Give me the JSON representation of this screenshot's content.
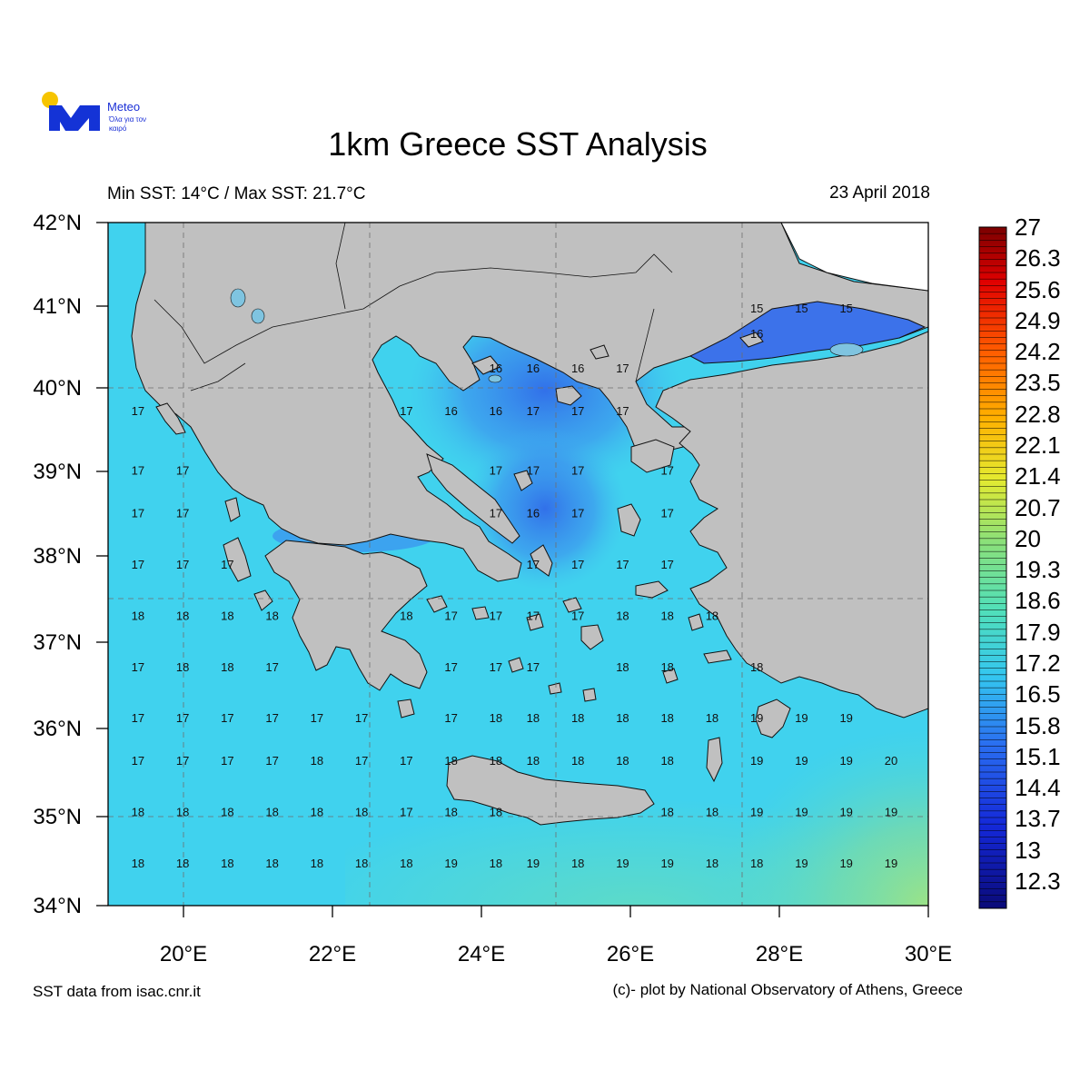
{
  "logo": {
    "brand": "Meteo",
    "tagline": "Όλα για τον καιρό"
  },
  "title": "1km Greece SST Analysis",
  "subtitle_left": "Min SST: 14°C / Max SST: 21.7°C",
  "date": "23 April 2018",
  "lat_labels": [
    "42°N",
    "41°N",
    "40°N",
    "39°N",
    "38°N",
    "37°N",
    "36°N",
    "35°N",
    "34°N"
  ],
  "lon_labels": [
    "20°E",
    "22°E",
    "24°E",
    "26°E",
    "28°E",
    "30°E"
  ],
  "colorbar": {
    "labels": [
      "27",
      "26.3",
      "25.6",
      "24.9",
      "24.2",
      "23.5",
      "22.8",
      "22.1",
      "21.4",
      "20.7",
      "20",
      "19.3",
      "18.6",
      "17.9",
      "17.2",
      "16.5",
      "15.8",
      "15.1",
      "14.4",
      "13.7",
      "13",
      "12.3"
    ],
    "min": 12.3,
    "max": 27
  },
  "source": "SST data from isac.cnr.it",
  "credit": "(c)- plot by National Observatory of Athens, Greece",
  "colors": {
    "land": "#c0c0c0",
    "sea_base": "#3fd5ee",
    "warm_sea": "#8ee08a",
    "cold_sea": "#3a78ec"
  },
  "sst_values": [
    [
      41.0,
      27.7,
      15
    ],
    [
      41.0,
      28.3,
      15
    ],
    [
      41.0,
      28.9,
      15
    ],
    [
      40.7,
      27.7,
      16
    ],
    [
      40.3,
      24.2,
      16
    ],
    [
      40.3,
      24.7,
      16
    ],
    [
      40.3,
      25.3,
      16
    ],
    [
      40.3,
      25.9,
      17
    ],
    [
      39.8,
      19.4,
      17
    ],
    [
      39.8,
      23.0,
      17
    ],
    [
      39.8,
      23.6,
      16
    ],
    [
      39.8,
      24.2,
      16
    ],
    [
      39.8,
      24.7,
      17
    ],
    [
      39.8,
      25.3,
      17
    ],
    [
      39.8,
      25.9,
      17
    ],
    [
      39.1,
      19.4,
      17
    ],
    [
      39.1,
      20.0,
      17
    ],
    [
      39.1,
      24.2,
      17
    ],
    [
      39.1,
      24.7,
      17
    ],
    [
      39.1,
      25.3,
      17
    ],
    [
      39.1,
      26.5,
      17
    ],
    [
      38.6,
      19.4,
      17
    ],
    [
      38.6,
      20.0,
      17
    ],
    [
      38.6,
      24.2,
      17
    ],
    [
      38.6,
      24.7,
      16
    ],
    [
      38.6,
      25.3,
      17
    ],
    [
      38.6,
      26.5,
      17
    ],
    [
      38.0,
      19.4,
      17
    ],
    [
      38.0,
      20.0,
      17
    ],
    [
      38.0,
      20.6,
      17
    ],
    [
      38.0,
      24.7,
      17
    ],
    [
      38.0,
      25.3,
      17
    ],
    [
      38.0,
      25.9,
      17
    ],
    [
      38.0,
      26.5,
      17
    ],
    [
      37.4,
      19.4,
      18
    ],
    [
      37.4,
      20.0,
      18
    ],
    [
      37.4,
      20.6,
      18
    ],
    [
      37.4,
      21.2,
      18
    ],
    [
      37.4,
      23.0,
      18
    ],
    [
      37.4,
      23.6,
      17
    ],
    [
      37.4,
      24.2,
      17
    ],
    [
      37.4,
      24.7,
      17
    ],
    [
      37.4,
      25.3,
      17
    ],
    [
      37.4,
      25.9,
      18
    ],
    [
      37.4,
      26.5,
      18
    ],
    [
      37.4,
      27.1,
      18
    ],
    [
      36.8,
      19.4,
      17
    ],
    [
      36.8,
      20.0,
      18
    ],
    [
      36.8,
      20.6,
      18
    ],
    [
      36.8,
      21.2,
      17
    ],
    [
      36.8,
      23.6,
      17
    ],
    [
      36.8,
      24.2,
      17
    ],
    [
      36.8,
      24.7,
      17
    ],
    [
      36.8,
      25.9,
      18
    ],
    [
      36.8,
      26.5,
      18
    ],
    [
      36.8,
      27.7,
      18
    ],
    [
      36.2,
      19.4,
      17
    ],
    [
      36.2,
      20.0,
      17
    ],
    [
      36.2,
      20.6,
      17
    ],
    [
      36.2,
      21.2,
      17
    ],
    [
      36.2,
      21.8,
      17
    ],
    [
      36.2,
      22.4,
      17
    ],
    [
      36.2,
      23.6,
      17
    ],
    [
      36.2,
      24.2,
      18
    ],
    [
      36.2,
      24.7,
      18
    ],
    [
      36.2,
      25.3,
      18
    ],
    [
      36.2,
      25.9,
      18
    ],
    [
      36.2,
      26.5,
      18
    ],
    [
      36.2,
      27.1,
      18
    ],
    [
      36.2,
      27.7,
      19
    ],
    [
      36.2,
      28.3,
      19
    ],
    [
      36.2,
      28.9,
      19
    ],
    [
      35.7,
      19.4,
      17
    ],
    [
      35.7,
      20.0,
      17
    ],
    [
      35.7,
      20.6,
      17
    ],
    [
      35.7,
      21.2,
      17
    ],
    [
      35.7,
      21.8,
      18
    ],
    [
      35.7,
      22.4,
      17
    ],
    [
      35.7,
      23.0,
      17
    ],
    [
      35.7,
      23.6,
      18
    ],
    [
      35.7,
      24.2,
      18
    ],
    [
      35.7,
      24.7,
      18
    ],
    [
      35.7,
      25.3,
      18
    ],
    [
      35.7,
      25.9,
      18
    ],
    [
      35.7,
      26.5,
      18
    ],
    [
      35.7,
      27.7,
      19
    ],
    [
      35.7,
      28.3,
      19
    ],
    [
      35.7,
      28.9,
      19
    ],
    [
      35.7,
      29.5,
      20
    ],
    [
      35.1,
      19.4,
      18
    ],
    [
      35.1,
      20.0,
      18
    ],
    [
      35.1,
      20.6,
      18
    ],
    [
      35.1,
      21.2,
      18
    ],
    [
      35.1,
      21.8,
      18
    ],
    [
      35.1,
      22.4,
      18
    ],
    [
      35.1,
      23.0,
      17
    ],
    [
      35.1,
      23.6,
      18
    ],
    [
      35.1,
      24.2,
      18
    ],
    [
      35.1,
      26.5,
      18
    ],
    [
      35.1,
      27.1,
      18
    ],
    [
      35.1,
      27.7,
      19
    ],
    [
      35.1,
      28.3,
      19
    ],
    [
      35.1,
      28.9,
      19
    ],
    [
      35.1,
      29.5,
      19
    ],
    [
      34.5,
      19.4,
      18
    ],
    [
      34.5,
      20.0,
      18
    ],
    [
      34.5,
      20.6,
      18
    ],
    [
      34.5,
      21.2,
      18
    ],
    [
      34.5,
      21.8,
      18
    ],
    [
      34.5,
      22.4,
      18
    ],
    [
      34.5,
      23.0,
      18
    ],
    [
      34.5,
      23.6,
      19
    ],
    [
      34.5,
      24.2,
      18
    ],
    [
      34.5,
      24.7,
      19
    ],
    [
      34.5,
      25.3,
      18
    ],
    [
      34.5,
      25.9,
      19
    ],
    [
      34.5,
      26.5,
      19
    ],
    [
      34.5,
      27.1,
      18
    ],
    [
      34.5,
      27.7,
      18
    ],
    [
      34.5,
      28.3,
      19
    ],
    [
      34.5,
      28.9,
      19
    ],
    [
      34.5,
      29.5,
      19
    ]
  ]
}
